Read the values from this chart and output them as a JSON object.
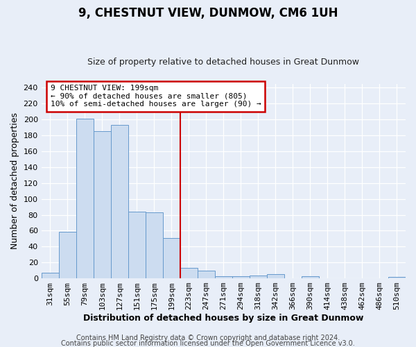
{
  "title": "9, CHESTNUT VIEW, DUNMOW, CM6 1UH",
  "subtitle": "Size of property relative to detached houses in Great Dunmow",
  "xlabel": "Distribution of detached houses by size in Great Dunmow",
  "ylabel": "Number of detached properties",
  "bar_labels": [
    "31sqm",
    "55sqm",
    "79sqm",
    "103sqm",
    "127sqm",
    "151sqm",
    "175sqm",
    "199sqm",
    "223sqm",
    "247sqm",
    "271sqm",
    "294sqm",
    "318sqm",
    "342sqm",
    "366sqm",
    "390sqm",
    "414sqm",
    "438sqm",
    "462sqm",
    "486sqm",
    "510sqm"
  ],
  "bar_values": [
    7,
    59,
    201,
    185,
    193,
    84,
    83,
    51,
    13,
    10,
    3,
    3,
    4,
    5,
    0,
    3,
    0,
    0,
    0,
    0,
    2
  ],
  "bar_color": "#ccdcf0",
  "bar_edge_color": "#6699cc",
  "vline_color": "#cc0000",
  "ylim": [
    0,
    245
  ],
  "yticks": [
    0,
    20,
    40,
    60,
    80,
    100,
    120,
    140,
    160,
    180,
    200,
    220,
    240
  ],
  "annotation_title": "9 CHESTNUT VIEW: 199sqm",
  "annotation_line1": "← 90% of detached houses are smaller (805)",
  "annotation_line2": "10% of semi-detached houses are larger (90) →",
  "annotation_box_color": "#cc0000",
  "footer_line1": "Contains HM Land Registry data © Crown copyright and database right 2024.",
  "footer_line2": "Contains public sector information licensed under the Open Government Licence v3.0.",
  "bg_color": "#e8eef8",
  "plot_bg_color": "#e8eef8",
  "grid_color": "#ffffff",
  "title_fontsize": 12,
  "subtitle_fontsize": 9,
  "xlabel_fontsize": 9,
  "ylabel_fontsize": 9,
  "tick_fontsize": 8,
  "annotation_fontsize": 8,
  "footer_fontsize": 7
}
